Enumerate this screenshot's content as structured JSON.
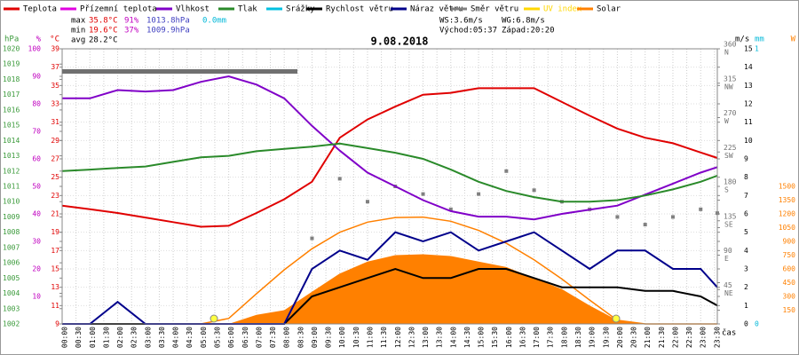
{
  "chart_data": {
    "type": "multi-axis-weather",
    "title": "9.08.2018",
    "stats": {
      "max": {
        "label": "max",
        "temp": "35.8°C",
        "hum": "91%",
        "press": "1013.8hPa",
        "rain": "0.0mm"
      },
      "min": {
        "label": "min",
        "temp": "19.6°C",
        "hum": "37%",
        "press": "1009.9hPa"
      },
      "avg": {
        "label": "avg",
        "temp": "28.2°C"
      },
      "wind": {
        "ws": "WS:3.6m/s",
        "wg": "WG:6.8m/s"
      },
      "sun": {
        "rise": "Východ:05:37",
        "set": "Západ:20:20"
      }
    },
    "xlabel": "čas",
    "xlim": [
      0,
      23.6
    ],
    "xticks": [
      {
        "value": 0,
        "label": "00:00"
      },
      {
        "value": 0.5,
        "label": "00:30"
      },
      {
        "value": 1,
        "label": "01:00"
      },
      {
        "value": 1.5,
        "label": "01:30"
      },
      {
        "value": 2,
        "label": "02:00"
      },
      {
        "value": 2.5,
        "label": "02:30"
      },
      {
        "value": 3,
        "label": "03:00"
      },
      {
        "value": 3.5,
        "label": "03:30"
      },
      {
        "value": 4,
        "label": "04:00"
      },
      {
        "value": 4.5,
        "label": "04:30"
      },
      {
        "value": 5,
        "label": "05:00"
      },
      {
        "value": 5.5,
        "label": "05:30"
      },
      {
        "value": 6,
        "label": "06:00"
      },
      {
        "value": 6.5,
        "label": "06:30"
      },
      {
        "value": 7,
        "label": "07:00"
      },
      {
        "value": 7.5,
        "label": "07:30"
      },
      {
        "value": 8,
        "label": "08:00"
      },
      {
        "value": 8.5,
        "label": "08:30"
      },
      {
        "value": 9,
        "label": "09:00"
      },
      {
        "value": 9.5,
        "label": "09:30"
      },
      {
        "value": 10,
        "label": "10:00"
      },
      {
        "value": 10.5,
        "label": "10:30"
      },
      {
        "value": 11,
        "label": "11:00"
      },
      {
        "value": 11.5,
        "label": "11:30"
      },
      {
        "value": 12,
        "label": "12:00"
      },
      {
        "value": 12.5,
        "label": "12:30"
      },
      {
        "value": 13,
        "label": "13:00"
      },
      {
        "value": 13.5,
        "label": "13:30"
      },
      {
        "value": 14,
        "label": "14:00"
      },
      {
        "value": 14.5,
        "label": "14:30"
      },
      {
        "value": 15,
        "label": "15:00"
      },
      {
        "value": 15.5,
        "label": "15:30"
      },
      {
        "value": 16,
        "label": "16:00"
      },
      {
        "value": 16.5,
        "label": "16:30"
      },
      {
        "value": 17,
        "label": "17:00"
      },
      {
        "value": 17.5,
        "label": "17:30"
      },
      {
        "value": 18,
        "label": "18:00"
      },
      {
        "value": 18.5,
        "label": "18:30"
      },
      {
        "value": 19,
        "label": "19:00"
      },
      {
        "value": 19.5,
        "label": "19:30"
      },
      {
        "value": 20,
        "label": "20:00"
      },
      {
        "value": 20.5,
        "label": "20:30"
      },
      {
        "value": 21,
        "label": "21:00"
      },
      {
        "value": 21.5,
        "label": "21:30"
      },
      {
        "value": 22,
        "label": "22:00"
      },
      {
        "value": 22.5,
        "label": "22:30"
      },
      {
        "value": 23,
        "label": "23:00"
      },
      {
        "value": 23.5,
        "label": "23:30"
      }
    ],
    "x": [
      0,
      1,
      2,
      3,
      4,
      5,
      6,
      7,
      8,
      9,
      10,
      11,
      12,
      13,
      14,
      15,
      16,
      17,
      18,
      19,
      20,
      21,
      22,
      23,
      23.6
    ],
    "axes": [
      {
        "unit": "hPa",
        "color": "#3a9a3a",
        "side": "left",
        "pos": 3,
        "lim": [
          1002,
          1020
        ],
        "ticks": [
          1002,
          1003,
          1004,
          1005,
          1006,
          1007,
          1008,
          1009,
          1010,
          1011,
          1012,
          1013,
          1014,
          1015,
          1016,
          1017,
          1018,
          1019,
          1020
        ]
      },
      {
        "unit": "%",
        "color": "#c000c0",
        "side": "left",
        "pos": 46,
        "lim": [
          0,
          100
        ],
        "ticks": [
          10,
          20,
          30,
          40,
          50,
          60,
          70,
          80,
          90,
          100
        ]
      },
      {
        "unit": "°C",
        "color": "#e00000",
        "side": "left",
        "pos": 67,
        "lim": [
          9,
          39
        ],
        "ticks": [
          9,
          11,
          13,
          15,
          17,
          19,
          21,
          23,
          25,
          27,
          29,
          31,
          33,
          35,
          37,
          39
        ]
      },
      {
        "unit": "m/s",
        "color": "#000000",
        "side": "right",
        "pos": 828,
        "lim": [
          0,
          15
        ],
        "ticks": [
          0,
          1,
          2,
          3,
          4,
          5,
          6,
          7,
          8,
          9,
          10,
          11,
          12,
          13,
          14,
          15
        ]
      },
      {
        "unit": "",
        "color": "#707070",
        "side": "right",
        "pos": 815,
        "lim": [
          0,
          360
        ],
        "ticks": [
          {
            "value": 45,
            "label": "45",
            "dir": "NE"
          },
          {
            "value": 90,
            "label": "90",
            "dir": "E"
          },
          {
            "value": 135,
            "label": "135",
            "dir": "SE"
          },
          {
            "value": 180,
            "label": "180",
            "dir": "S"
          },
          {
            "value": 225,
            "label": "225",
            "dir": "SW"
          },
          {
            "value": 270,
            "label": "270",
            "dir": "W"
          },
          {
            "value": 315,
            "label": "315",
            "dir": "NW"
          },
          {
            "value": 360,
            "label": "360",
            "dir": "N"
          }
        ]
      },
      {
        "unit": "mm",
        "color": "#00b8d8",
        "side": "right",
        "pos": 850,
        "lim": [
          0,
          1
        ],
        "ticks": [
          0,
          1
        ]
      },
      {
        "unit": "W",
        "color": "#ff8000",
        "side": "right",
        "pos": 896,
        "lim": [
          0,
          3000
        ],
        "ticks": [
          150,
          300,
          450,
          600,
          750,
          900,
          1050,
          1200,
          1350,
          1500
        ]
      }
    ],
    "series": [
      {
        "name": "Teplota",
        "color": "#e00000",
        "axis": 2,
        "kind": "line",
        "values": [
          21.9,
          21.5,
          21.1,
          20.6,
          20.1,
          19.6,
          19.7,
          21.1,
          22.6,
          24.5,
          29.3,
          31.3,
          32.7,
          34,
          34.2,
          34.7,
          34.7,
          34.7,
          33.2,
          31.7,
          30.3,
          29.3,
          28.7,
          27.7,
          27.1
        ]
      },
      {
        "name": "Přízemní teplota",
        "color": "#e000e0",
        "axis": 2,
        "kind": "line",
        "values": [
          null,
          null,
          null,
          null,
          null,
          null,
          null,
          null,
          null,
          null,
          null,
          null,
          null,
          null,
          null,
          null,
          null,
          null,
          null,
          null,
          null,
          null,
          null,
          null,
          null
        ]
      },
      {
        "name": "Vlhkost",
        "color": "#8000c8",
        "axis": 1,
        "kind": "line",
        "values": [
          82,
          82,
          85,
          84.5,
          85,
          88,
          90,
          87,
          82,
          72,
          63,
          55,
          50,
          45,
          41,
          39,
          39,
          38,
          40,
          41.5,
          43,
          47,
          51,
          55,
          57
        ]
      },
      {
        "name": "Tlak",
        "color": "#2a8a2a",
        "axis": 0,
        "kind": "line",
        "values": [
          1012.0,
          1012.1,
          1012.2,
          1012.3,
          1012.6,
          1012.9,
          1013.0,
          1013.3,
          1013.45,
          1013.6,
          1013.8,
          1013.5,
          1013.2,
          1012.8,
          1012.1,
          1011.3,
          1010.7,
          1010.3,
          1010.0,
          1010.0,
          1010.1,
          1010.4,
          1010.8,
          1011.3,
          1011.7
        ]
      },
      {
        "name": "Srážky",
        "color": "#00c0e0",
        "axis": 5,
        "kind": "line",
        "values": [
          null,
          null,
          null,
          null,
          null,
          null,
          null,
          null,
          null,
          null,
          null,
          null,
          null,
          null,
          null,
          null,
          null,
          null,
          null,
          null,
          null,
          null,
          null,
          null,
          null
        ]
      },
      {
        "name": "Rychlost větru",
        "color": "#000000",
        "axis": 3,
        "kind": "line",
        "values": [
          0,
          0,
          0,
          0,
          0,
          0,
          0,
          0,
          0,
          1.5,
          2,
          2.5,
          3,
          2.5,
          2.5,
          3,
          3,
          2.5,
          2,
          2,
          2,
          1.8,
          1.8,
          1.5,
          1
        ]
      },
      {
        "name": "Náraz větru",
        "color": "#00008b",
        "axis": 3,
        "kind": "line",
        "values": [
          0,
          0,
          1.2,
          0,
          0,
          0,
          0,
          0,
          0,
          3,
          4,
          3.5,
          5,
          4.5,
          5,
          4,
          4.5,
          5,
          4,
          3,
          4,
          4,
          3,
          3,
          2
        ]
      },
      {
        "name": "Směr větru",
        "color": "#808080",
        "axis": 4,
        "kind": "points",
        "values": [
          null,
          null,
          null,
          null,
          null,
          null,
          null,
          null,
          null,
          112,
          190,
          160,
          180,
          170,
          150,
          170,
          200,
          175,
          160,
          150,
          140,
          130,
          140,
          150,
          145
        ]
      },
      {
        "name": "UV index",
        "color": "#ffd700",
        "axis": 6,
        "kind": "line",
        "values": [
          null,
          null,
          null,
          null,
          null,
          null,
          null,
          null,
          null,
          null,
          null,
          null,
          null,
          null,
          null,
          null,
          null,
          null,
          null,
          null,
          null,
          null,
          null,
          null,
          null
        ]
      },
      {
        "name": "Solar",
        "color": "#ff8000",
        "axis": 6,
        "kind": "area",
        "values": [
          0,
          0,
          0,
          0,
          0,
          0,
          0,
          100,
          150,
          350,
          550,
          680,
          750,
          760,
          740,
          680,
          620,
          500,
          380,
          200,
          40,
          0,
          0,
          0,
          0
        ],
        "max_values": [
          0,
          0,
          0,
          0,
          0,
          0,
          60,
          330,
          590,
          820,
          1000,
          1110,
          1160,
          1165,
          1120,
          1020,
          880,
          700,
          490,
          260,
          40,
          0,
          0,
          0,
          0
        ]
      }
    ]
  }
}
